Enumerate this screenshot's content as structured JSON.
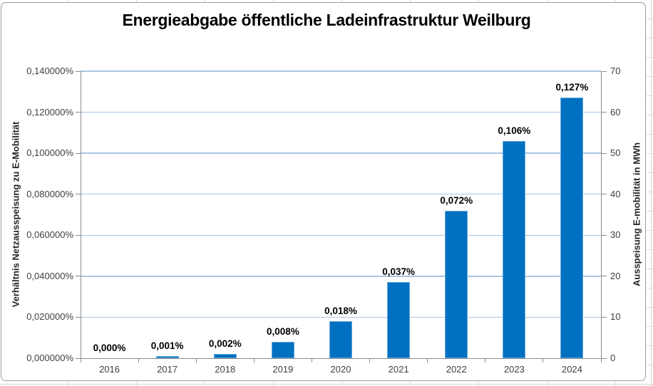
{
  "chart_data": {
    "type": "bar",
    "title": "Energieabgabe öffentliche Ladeinfrastruktur Weilburg",
    "categories": [
      "2016",
      "2017",
      "2018",
      "2019",
      "2020",
      "2021",
      "2022",
      "2023",
      "2024"
    ],
    "series": [
      {
        "name": "Verhältnis Netzausspeisung zu E-Mobilität",
        "unit": "%",
        "values": [
          0.0,
          0.001,
          0.002,
          0.008,
          0.018,
          0.037,
          0.072,
          0.106,
          0.127
        ],
        "data_labels": [
          "0,000%",
          "0,001%",
          "0,002%",
          "0,008%",
          "0,018%",
          "0,037%",
          "0,072%",
          "0,106%",
          "0,127%"
        ]
      }
    ],
    "y_left": {
      "label": "Verhältnis Netzausspeisung zu E-Mobilität",
      "min": 0,
      "max": 0.14,
      "step": 0.02,
      "tick_labels": [
        "0,000000%",
        "0,020000%",
        "0,040000%",
        "0,060000%",
        "0,080000%",
        "0,100000%",
        "0,120000%",
        "0,140000%"
      ]
    },
    "y_right": {
      "label": "Ausspeisung E-mobilität in MWh",
      "min": 0,
      "max": 70,
      "step": 10,
      "tick_labels": [
        "0",
        "10",
        "20",
        "30",
        "40",
        "50",
        "60",
        "70"
      ]
    },
    "grid": true,
    "legend": false,
    "colors": {
      "bar": "#0070C0",
      "bar_edge": "#61A8DC",
      "gridline": "#A9C6E3",
      "axis_line": "#8C8C8C",
      "tick_text": "#404040",
      "data_label": "#000000",
      "title": "#000000"
    }
  }
}
